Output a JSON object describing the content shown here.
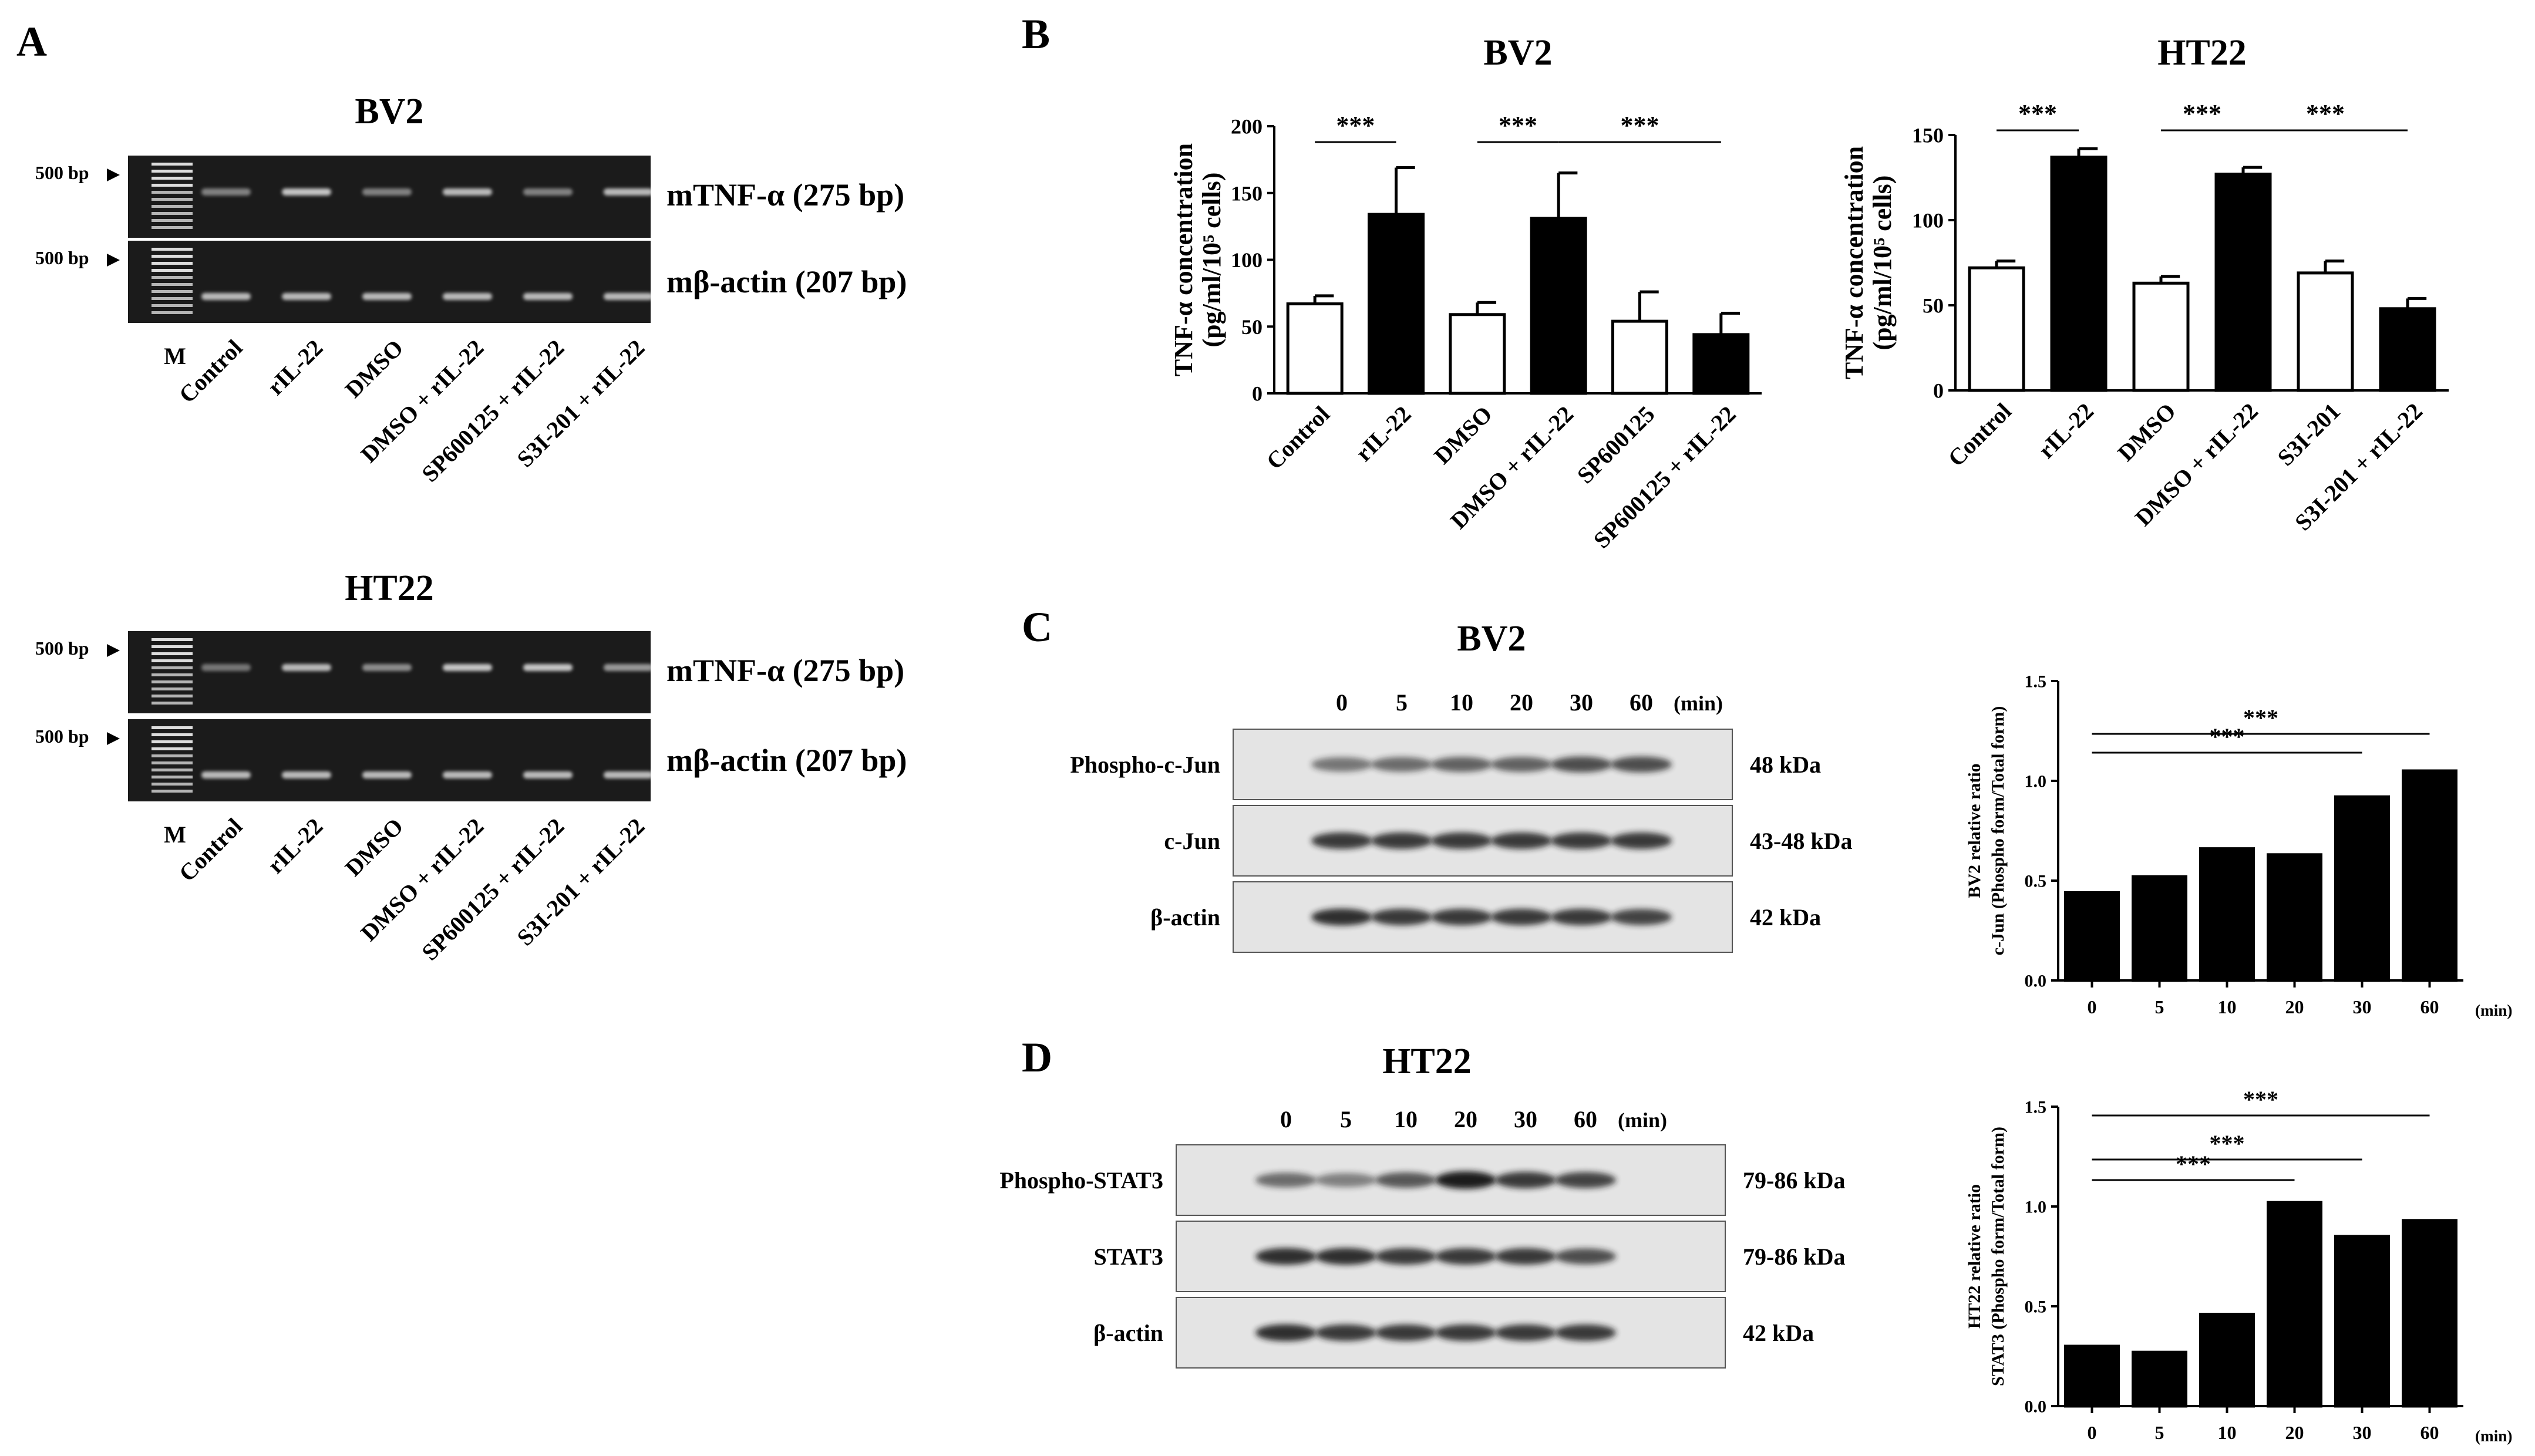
{
  "panels": {
    "a": "A",
    "b": "B",
    "c": "C",
    "d": "D"
  },
  "panel_a": {
    "groups": [
      {
        "title": "BV2",
        "gene_label": "mTNF-α (275 bp)",
        "ref_label": "mβ-actin (207 bp)",
        "bp_marker": "500 bp",
        "marker_label": "M",
        "tnf_band_intensity": [
          0.45,
          0.75,
          0.45,
          0.7,
          0.45,
          0.7
        ],
        "actin_band_intensity": [
          0.7,
          0.7,
          0.7,
          0.7,
          0.7,
          0.7
        ]
      },
      {
        "title": "HT22",
        "gene_label": "mTNF-α (275 bp)",
        "ref_label": "mβ-actin (207 bp)",
        "bp_marker": "500 bp",
        "marker_label": "M",
        "tnf_band_intensity": [
          0.4,
          0.7,
          0.5,
          0.75,
          0.75,
          0.55
        ],
        "actin_band_intensity": [
          0.7,
          0.7,
          0.7,
          0.7,
          0.7,
          0.7
        ]
      }
    ],
    "lanes": [
      "Control",
      "rIL-22",
      "DMSO",
      "DMSO + rIL-22",
      "SP600125 + rIL-22",
      "S3I-201 + rIL-22"
    ]
  },
  "chart_data": [
    {
      "type": "bar",
      "panel": "B",
      "title": "BV2",
      "ylabel_line1": "TNF-α concentration",
      "ylabel_line2": "(pg/ml/10⁵ cells)",
      "categories": [
        "Control",
        "rIL-22",
        "DMSO",
        "DMSO + rIL-22",
        "SP600125",
        "SP600125 + rIL-22"
      ],
      "values": [
        67,
        134,
        59,
        131,
        54,
        44
      ],
      "errors": [
        6,
        35,
        9,
        34,
        22,
        16
      ],
      "filled": [
        false,
        true,
        false,
        true,
        false,
        true
      ],
      "ylim": [
        0,
        200
      ],
      "yticks": [
        0,
        50,
        100,
        150,
        200
      ],
      "significance": [
        {
          "from": 0,
          "to": 1,
          "label": "***"
        },
        {
          "from": 2,
          "to": 3,
          "label": "***"
        },
        {
          "from": 3,
          "to": 5,
          "label": "***"
        }
      ]
    },
    {
      "type": "bar",
      "panel": "B",
      "title": "HT22",
      "ylabel_line1": "TNF-α concentration",
      "ylabel_line2": "(pg/ml/10⁵ cells)",
      "categories": [
        "Control",
        "rIL-22",
        "DMSO",
        "DMSO + rIL-22",
        "S3I-201",
        "S3I-201 + rIL-22"
      ],
      "values": [
        72,
        137,
        63,
        127,
        69,
        48
      ],
      "errors": [
        4,
        5,
        4,
        4,
        7,
        6
      ],
      "filled": [
        false,
        true,
        false,
        true,
        false,
        true
      ],
      "ylim": [
        0,
        150
      ],
      "yticks": [
        0,
        50,
        100,
        150
      ],
      "significance": [
        {
          "from": 0,
          "to": 1,
          "label": "***"
        },
        {
          "from": 2,
          "to": 3,
          "label": "***"
        },
        {
          "from": 3,
          "to": 5,
          "label": "***"
        }
      ]
    },
    {
      "type": "bar",
      "panel": "C",
      "ylabel_line1": "BV2 relative ratio",
      "ylabel_line2": "c-Jun (Phospho form/Total form)",
      "categories": [
        "0",
        "5",
        "10",
        "20",
        "30",
        "60"
      ],
      "xunit": "(min)",
      "values": [
        0.44,
        0.52,
        0.66,
        0.63,
        0.92,
        1.05
      ],
      "ylim": [
        0,
        1.5
      ],
      "yticks": [
        "0.0",
        "0.5",
        "1.0",
        "1.5"
      ],
      "significance": [
        {
          "from": 0,
          "to": 4,
          "label": "***"
        },
        {
          "from": 0,
          "to": 5,
          "label": "***"
        }
      ]
    },
    {
      "type": "bar",
      "panel": "D",
      "ylabel_line1": "HT22 relative ratio",
      "ylabel_line2": "STAT3 (Phospho form/Total form)",
      "categories": [
        "0",
        "5",
        "10",
        "20",
        "30",
        "60"
      ],
      "xunit": "(min)",
      "values": [
        0.3,
        0.27,
        0.46,
        1.02,
        0.85,
        0.93
      ],
      "ylim": [
        0,
        1.5
      ],
      "yticks": [
        "0.0",
        "0.5",
        "1.0",
        "1.5"
      ],
      "significance": [
        {
          "from": 0,
          "to": 3,
          "label": "***"
        },
        {
          "from": 0,
          "to": 4,
          "label": "***"
        },
        {
          "from": 0,
          "to": 5,
          "label": "***"
        }
      ]
    }
  ],
  "panel_c_blot": {
    "title": "BV2",
    "time_points": [
      "0",
      "5",
      "10",
      "20",
      "30",
      "60"
    ],
    "time_unit": "(min)",
    "rows": [
      {
        "label": "Phospho-c-Jun",
        "size": "48 kDa",
        "intensity": [
          0.55,
          0.6,
          0.65,
          0.65,
          0.75,
          0.75
        ]
      },
      {
        "label": "c-Jun",
        "size": "43-48 kDa",
        "intensity": [
          0.85,
          0.85,
          0.85,
          0.85,
          0.85,
          0.85
        ]
      },
      {
        "label": "β-actin",
        "size": "42 kDa",
        "intensity": [
          0.9,
          0.85,
          0.85,
          0.85,
          0.85,
          0.8
        ]
      }
    ]
  },
  "panel_d_blot": {
    "title": "HT22",
    "time_points": [
      "0",
      "5",
      "10",
      "20",
      "30",
      "60"
    ],
    "time_unit": "(min)",
    "rows": [
      {
        "label": "Phospho-STAT3",
        "size": "79-86 kDa",
        "intensity": [
          0.6,
          0.5,
          0.7,
          1.0,
          0.85,
          0.8
        ]
      },
      {
        "label": "STAT3",
        "size": "79-86 kDa",
        "intensity": [
          0.9,
          0.9,
          0.85,
          0.85,
          0.85,
          0.75
        ]
      },
      {
        "label": "β-actin",
        "size": "42 kDa",
        "intensity": [
          0.9,
          0.85,
          0.85,
          0.85,
          0.85,
          0.85
        ]
      }
    ]
  }
}
